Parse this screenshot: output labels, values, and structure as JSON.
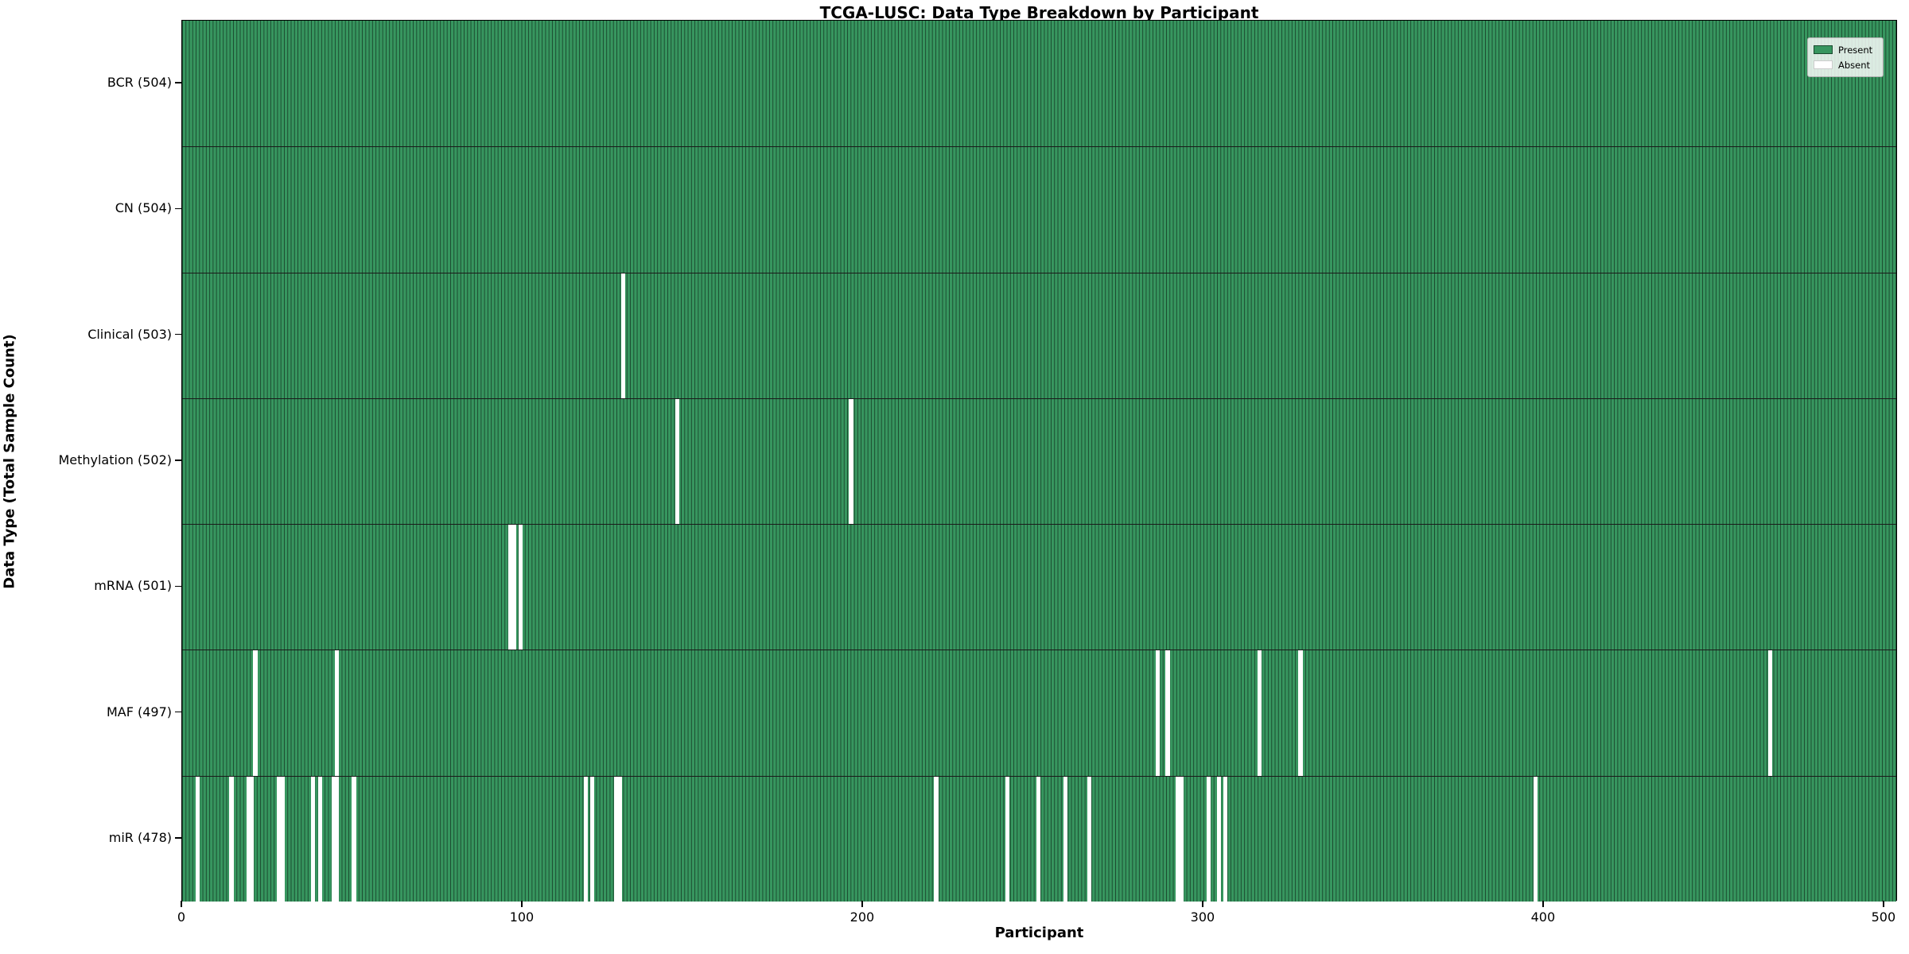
{
  "chart_data": {
    "type": "heatmap",
    "title": "TCGA-LUSC: Data Type Breakdown by Participant",
    "xlabel": "Participant",
    "ylabel": "Data Type (Total Sample Count)",
    "x_ticks": [
      0,
      100,
      200,
      300,
      400,
      500
    ],
    "xlim": [
      0,
      504
    ],
    "n_participants": 504,
    "grid": false,
    "legend_position": "upper right",
    "legend": {
      "items": [
        {
          "label": "Present",
          "color": "#37965f"
        },
        {
          "label": "Absent",
          "color": "#ffffff"
        }
      ]
    },
    "rows": [
      {
        "name": "BCR",
        "total_count": 504,
        "tick_label": "BCR (504)",
        "absent_participants": []
      },
      {
        "name": "CN",
        "total_count": 504,
        "tick_label": "CN (504)",
        "absent_participants": []
      },
      {
        "name": "Clinical",
        "total_count": 503,
        "tick_label": "Clinical (503)",
        "absent_participants": [
          129
        ]
      },
      {
        "name": "Methylation",
        "total_count": 502,
        "tick_label": "Methylation (502)",
        "absent_participants": [
          145,
          196
        ]
      },
      {
        "name": "mRNA",
        "total_count": 501,
        "tick_label": "mRNA (501)",
        "absent_participants": [
          96,
          97,
          99
        ]
      },
      {
        "name": "MAF",
        "total_count": 497,
        "tick_label": "MAF (497)",
        "absent_participants": [
          21,
          45,
          286,
          289,
          316,
          328,
          466
        ]
      },
      {
        "name": "miR",
        "total_count": 478,
        "tick_label": "miR (478)",
        "absent_participants": [
          4,
          14,
          19,
          20,
          28,
          29,
          38,
          40,
          44,
          45,
          50,
          118,
          120,
          127,
          128,
          221,
          242,
          251,
          259,
          266,
          292,
          293,
          301,
          304,
          306,
          397
        ]
      }
    ],
    "colors": {
      "present_fill": "#37965f",
      "bar_edge": "#1b4a2f",
      "absent_fill": "#ffffff",
      "row_separator": "#1a1a1a",
      "plot_border": "#000000",
      "text": "#000000"
    }
  }
}
